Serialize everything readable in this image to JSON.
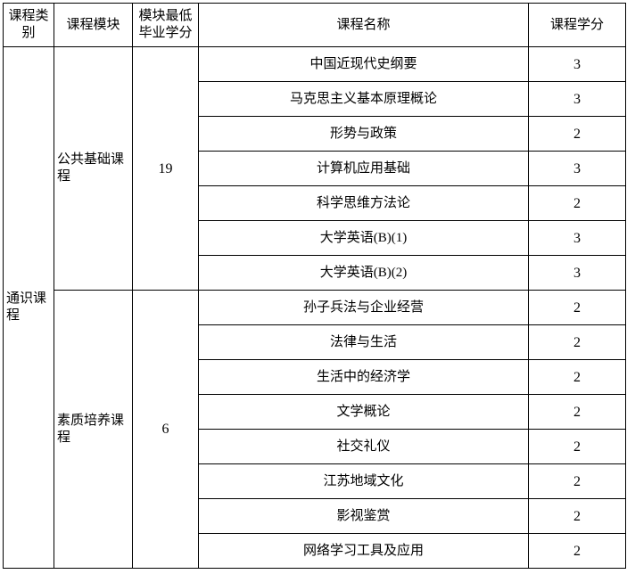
{
  "headers": [
    "课程类别",
    "课程模块",
    "模块最低毕业学分",
    "课程名称",
    "课程学分"
  ],
  "category": "通识课程",
  "modules": [
    {
      "name": "公共基础课程",
      "min_credits": "19",
      "courses": [
        {
          "name": "中国近现代史纲要",
          "credits": "3"
        },
        {
          "name": "马克思主义基本原理概论",
          "credits": "3"
        },
        {
          "name": "形势与政策",
          "credits": "2"
        },
        {
          "name": "计算机应用基础",
          "credits": "3"
        },
        {
          "name": "科学思维方法论",
          "credits": "2"
        },
        {
          "name": "大学英语(B)(1)",
          "credits": "3"
        },
        {
          "name": "大学英语(B)(2)",
          "credits": "3"
        }
      ]
    },
    {
      "name": "素质培养课程",
      "min_credits": "6",
      "courses": [
        {
          "name": "孙子兵法与企业经营",
          "credits": "2"
        },
        {
          "name": "法律与生活",
          "credits": "2"
        },
        {
          "name": "生活中的经济学",
          "credits": "2"
        },
        {
          "name": "文学概论",
          "credits": "2"
        },
        {
          "name": "社交礼仪",
          "credits": "2"
        },
        {
          "name": "江苏地域文化",
          "credits": "2"
        },
        {
          "name": "影视鉴赏",
          "credits": "2"
        },
        {
          "name": "网络学习工具及应用",
          "credits": "2"
        }
      ]
    }
  ]
}
